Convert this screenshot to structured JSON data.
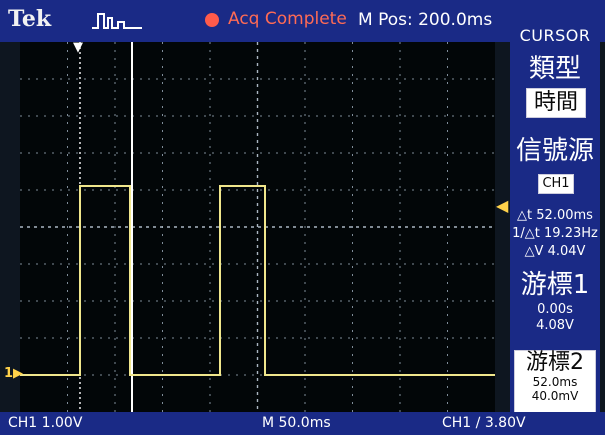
{
  "brand": "Tek",
  "status": {
    "text": "Acq Complete",
    "color": "#ff5b4b"
  },
  "header": {
    "mpos": "M Pos: 200.0ms"
  },
  "sidebar": {
    "title": "CURSOR",
    "type_label": "類型",
    "type_value": "時間",
    "source_label": "信號源",
    "source_value": "CH1",
    "delta_t": "△t 52.00ms",
    "freq": "1/△t 19.23Hz",
    "delta_v": "△V 4.04V",
    "cursor1_label": "游標1",
    "cursor1_time": "0.00s",
    "cursor1_volt": "4.08V",
    "cursor2_label": "游標2",
    "cursor2_time": "52.0ms",
    "cursor2_volt": "40.0mV"
  },
  "bottom": {
    "ch1_scale": "CH1  1.00V",
    "timebase": "M 50.0ms",
    "trigger": "CH1  ∕  3.80V"
  },
  "markers": {
    "ch1": "1",
    "trigger_arrow": "◀"
  },
  "colors": {
    "trace": "#f0e68c",
    "grid": "#7f8c99",
    "bar": "#1a2a86",
    "cursor": "#ffffff"
  }
}
